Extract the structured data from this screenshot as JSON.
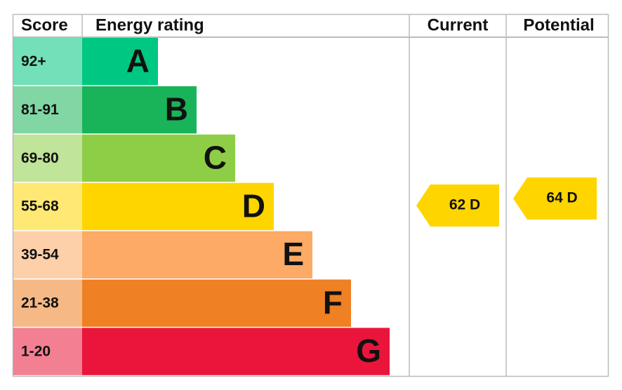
{
  "header": {
    "score": "Score",
    "rating": "Energy rating",
    "current": "Current",
    "potential": "Potential"
  },
  "bands": [
    {
      "score": "92+",
      "letter": "A",
      "color": "#00c781"
    },
    {
      "score": "81-91",
      "letter": "B",
      "color": "#19b459"
    },
    {
      "score": "69-80",
      "letter": "C",
      "color": "#8dce46"
    },
    {
      "score": "55-68",
      "letter": "D",
      "color": "#ffd500"
    },
    {
      "score": "39-54",
      "letter": "E",
      "color": "#fcaa65"
    },
    {
      "score": "21-38",
      "letter": "F",
      "color": "#ef8023"
    },
    {
      "score": "1-20",
      "letter": "G",
      "color": "#e9153b"
    }
  ],
  "current": {
    "label": "62 D",
    "color": "#ffd500"
  },
  "potential": {
    "label": "64 D",
    "color": "#ffd500"
  }
}
